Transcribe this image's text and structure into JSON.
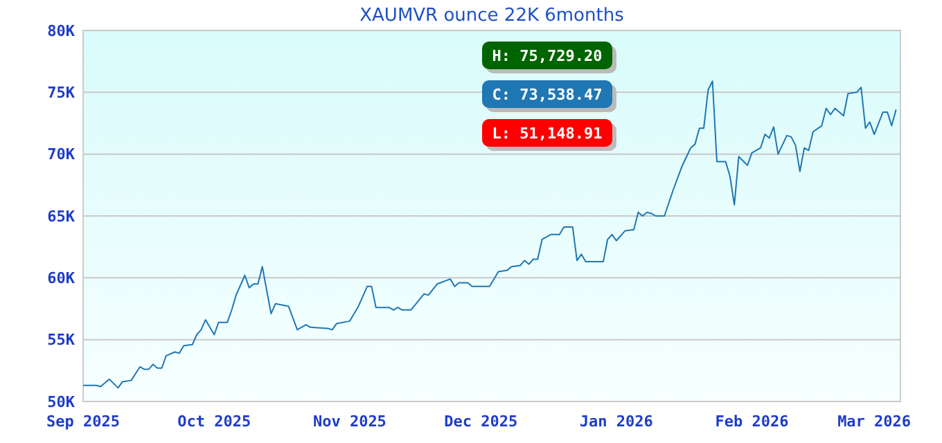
{
  "chart_data": {
    "type": "line",
    "title": "XAUMVR ounce 22K 6months",
    "annotations": [
      "H: 75,729.20",
      "C: 73,538.47",
      "L: 51,148.91"
    ],
    "x": [
      "2025-09-01",
      "2025-09-04",
      "2025-09-05",
      "2025-09-07",
      "2025-09-09",
      "2025-09-10",
      "2025-09-12",
      "2025-09-14",
      "2025-09-15",
      "2025-09-16",
      "2025-09-17",
      "2025-09-18",
      "2025-09-19",
      "2025-09-20",
      "2025-09-22",
      "2025-09-23",
      "2025-09-24",
      "2025-09-26",
      "2025-09-27",
      "2025-09-28",
      "2025-09-29",
      "2025-10-01",
      "2025-10-02",
      "2025-10-04",
      "2025-10-05",
      "2025-10-06",
      "2025-10-08",
      "2025-10-09",
      "2025-10-10",
      "2025-10-11",
      "2025-10-12",
      "2025-10-13",
      "2025-10-14",
      "2025-10-15",
      "2025-10-18",
      "2025-10-20",
      "2025-10-22",
      "2025-10-23",
      "2025-10-27",
      "2025-10-28",
      "2025-10-29",
      "2025-11-01",
      "2025-11-03",
      "2025-11-05",
      "2025-11-06",
      "2025-11-07",
      "2025-11-10",
      "2025-11-11",
      "2025-11-12",
      "2025-11-13",
      "2025-11-15",
      "2025-11-18",
      "2025-11-19",
      "2025-11-21",
      "2025-11-24",
      "2025-11-25",
      "2025-11-26",
      "2025-11-28",
      "2025-11-29",
      "2025-12-03",
      "2025-12-05",
      "2025-12-07",
      "2025-12-08",
      "2025-12-10",
      "2025-12-11",
      "2025-12-12",
      "2025-12-13",
      "2025-12-14",
      "2025-12-15",
      "2025-12-17",
      "2025-12-19",
      "2025-12-20",
      "2025-12-22",
      "2025-12-23",
      "2025-12-24",
      "2025-12-25",
      "2025-12-29",
      "2025-12-30",
      "2025-12-31",
      "2026-01-01",
      "2026-01-03",
      "2026-01-05",
      "2026-01-06",
      "2026-01-07",
      "2026-01-08",
      "2026-01-09",
      "2026-01-10",
      "2026-01-12",
      "2026-01-14",
      "2026-01-16",
      "2026-01-18",
      "2026-01-19",
      "2026-01-20",
      "2026-01-21",
      "2026-01-22",
      "2026-01-23",
      "2026-01-24",
      "2026-01-26",
      "2026-01-27",
      "2026-01-28",
      "2026-01-29",
      "2026-01-31",
      "2026-02-01",
      "2026-02-03",
      "2026-02-04",
      "2026-02-05",
      "2026-02-06",
      "2026-02-07",
      "2026-02-09",
      "2026-02-10",
      "2026-02-11",
      "2026-02-12",
      "2026-02-13",
      "2026-02-14",
      "2026-02-15",
      "2026-02-17",
      "2026-02-18",
      "2026-02-19",
      "2026-02-20",
      "2026-02-22",
      "2026-02-23",
      "2026-02-25",
      "2026-02-26",
      "2026-02-27",
      "2026-02-28",
      "2026-03-01",
      "2026-03-03",
      "2026-03-04",
      "2026-03-05",
      "2026-03-06"
    ],
    "series": [
      {
        "color": "#1f77b4",
        "values": [
          51300,
          51300,
          51200,
          51800,
          51100,
          51600,
          51700,
          52800,
          52600,
          52600,
          53000,
          52700,
          52700,
          53700,
          54000,
          53900,
          54500,
          54600,
          55400,
          55800,
          56600,
          55400,
          56400,
          56400,
          57400,
          58600,
          60200,
          59200,
          59500,
          59500,
          60900,
          59000,
          57100,
          57900,
          57700,
          55800,
          56200,
          56000,
          55900,
          55800,
          56300,
          56500,
          57700,
          59300,
          59300,
          57600,
          57600,
          57400,
          57600,
          57400,
          57400,
          58700,
          58600,
          59500,
          59900,
          59300,
          59600,
          59600,
          59300,
          59300,
          60500,
          60600,
          60900,
          61000,
          61400,
          61100,
          61500,
          61500,
          63100,
          63500,
          63500,
          64100,
          64100,
          61400,
          61900,
          61300,
          61300,
          63100,
          63500,
          63000,
          63800,
          63900,
          65300,
          65000,
          65300,
          65200,
          65000,
          65000,
          67100,
          69000,
          70500,
          70800,
          72100,
          72100,
          75200,
          75900,
          69400,
          69400,
          68200,
          65900,
          69800,
          69100,
          70100,
          70500,
          71600,
          71300,
          72200,
          70000,
          71500,
          71400,
          70700,
          68600,
          70500,
          70300,
          71800,
          72300,
          73700,
          73200,
          73700,
          73100,
          74900,
          75000,
          75400,
          72100,
          72600,
          71600,
          73400,
          73400,
          72300,
          73600
        ]
      }
    ],
    "xlim": [
      "2025-09-01",
      "2026-03-07"
    ],
    "xticks": [
      {
        "value": "2025-09-01",
        "label": "Sep 2025"
      },
      {
        "value": "2025-10-01",
        "label": "Oct 2025"
      },
      {
        "value": "2025-11-01",
        "label": "Nov 2025"
      },
      {
        "value": "2025-12-01",
        "label": "Dec 2025"
      },
      {
        "value": "2026-01-01",
        "label": "Jan 2026"
      },
      {
        "value": "2026-02-01",
        "label": "Feb 2026"
      },
      {
        "value": "2026-03-01",
        "label": "Mar 2026"
      }
    ],
    "ylim": [
      50000,
      80000
    ],
    "yticks": [
      {
        "value": 50000,
        "label": "50K"
      },
      {
        "value": 55000,
        "label": "55K"
      },
      {
        "value": 60000,
        "label": "60K"
      },
      {
        "value": 65000,
        "label": "65K"
      },
      {
        "value": 70000,
        "label": "70K"
      },
      {
        "value": 75000,
        "label": "75K"
      },
      {
        "value": 80000,
        "label": "80K"
      }
    ],
    "grid": "y",
    "marker": "none",
    "line_style": "solid"
  }
}
